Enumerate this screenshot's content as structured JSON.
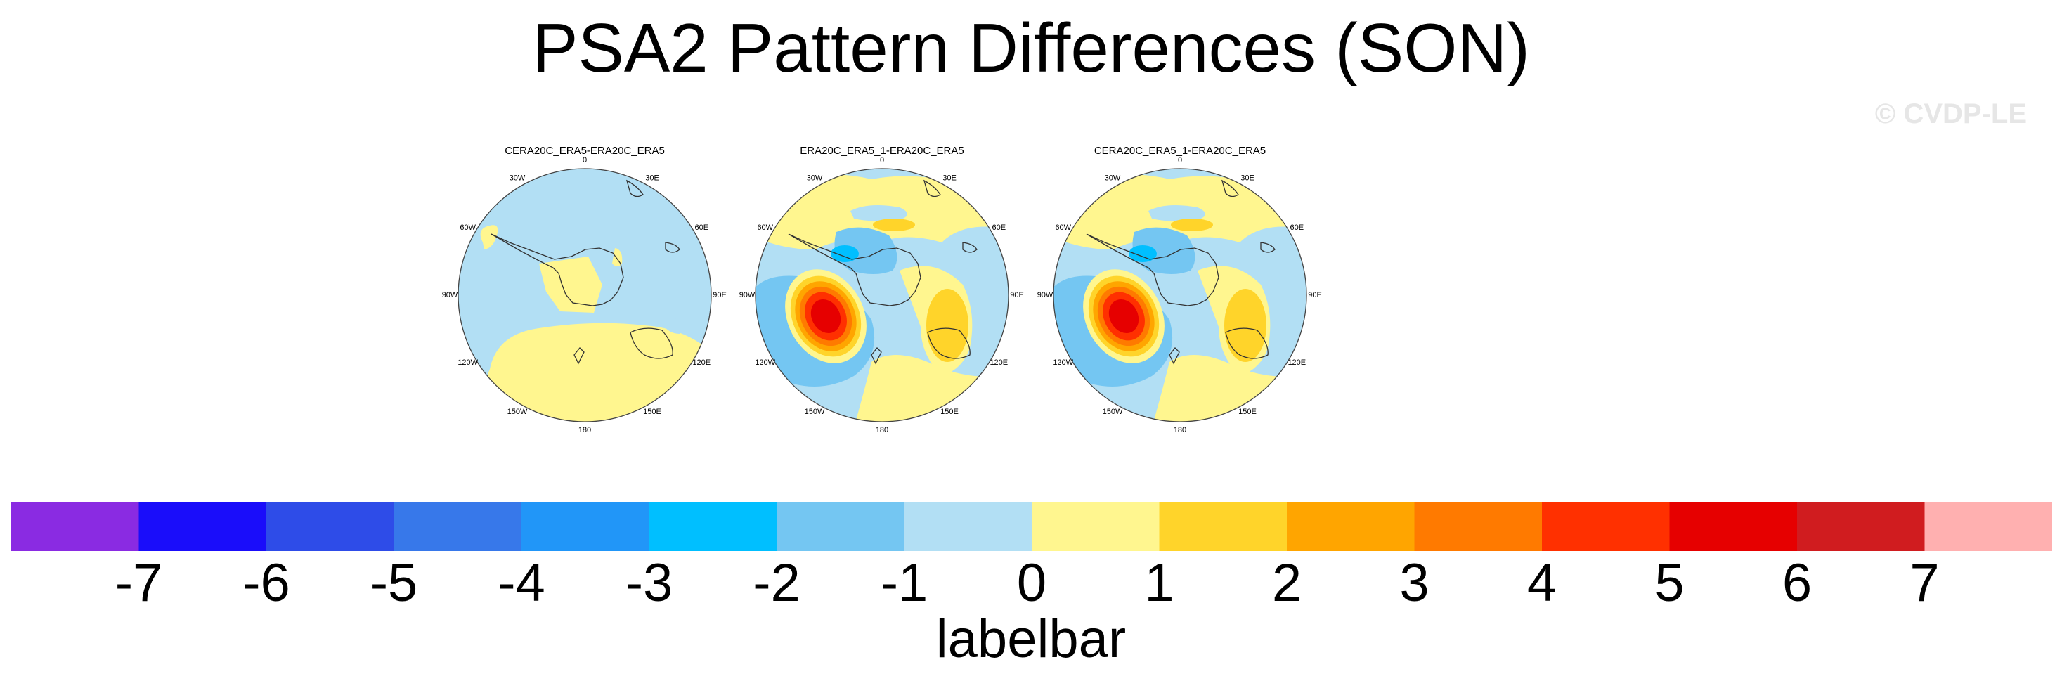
{
  "title": "PSA2 Pattern Differences (SON)",
  "watermark": "© CVDP-LE",
  "panels": [
    {
      "title": "CERA20C_ERA5-ERA20C_ERA5",
      "pattern": "weak"
    },
    {
      "title": "ERA20C_ERA5_1-ERA20C_ERA5",
      "pattern": "strong"
    },
    {
      "title": "CERA20C_ERA5_1-ERA20C_ERA5",
      "pattern": "strong"
    }
  ],
  "longitude_labels": [
    "0",
    "30E",
    "60E",
    "90E",
    "120E",
    "150E",
    "180",
    "150W",
    "120W",
    "90W",
    "60W",
    "30W"
  ],
  "labelbar": {
    "title": "labelbar",
    "ticks": [
      "-7",
      "-6",
      "-5",
      "-4",
      "-3",
      "-2",
      "-1",
      "0",
      "1",
      "2",
      "3",
      "4",
      "5",
      "6",
      "7"
    ],
    "colors": [
      "#8a2be2",
      "#1a0dfa",
      "#2e4ce8",
      "#3778ea",
      "#2196f8",
      "#00bfff",
      "#74c6f2",
      "#b2dff4",
      "#fff68f",
      "#ffd42a",
      "#ffa500",
      "#ff7a00",
      "#ff3000",
      "#e60000",
      "#d01c1f",
      "#ffb0b0"
    ]
  },
  "map_colors": {
    "land_line": "#333333",
    "light_blue": "#b2dff4",
    "blue": "#74c6f2",
    "mid_blue": "#00bfff",
    "light_yellow": "#fff68f",
    "yellow": "#ffd42a",
    "orange": "#ffa500",
    "dark_orange": "#ff7a00",
    "red": "#ff3000",
    "dark_red": "#e60000"
  }
}
